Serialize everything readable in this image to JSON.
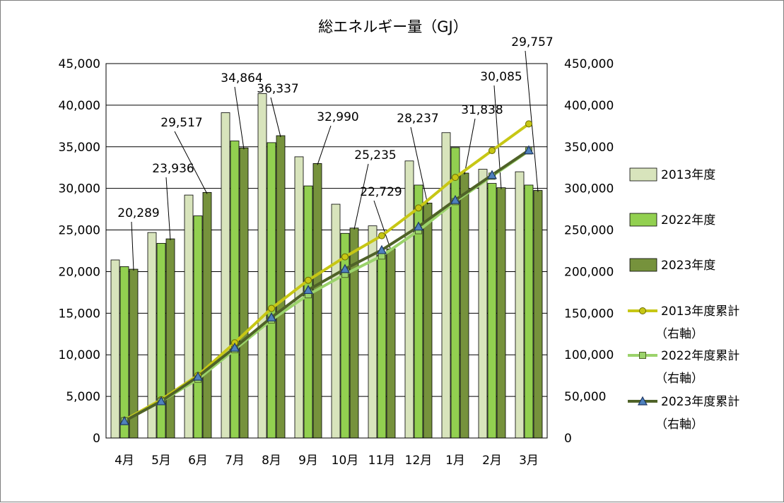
{
  "chart_data": {
    "type": "bar",
    "title": "総エネルギー量（GJ）",
    "categories": [
      "4月",
      "5月",
      "6月",
      "7月",
      "8月",
      "9月",
      "10月",
      "11月",
      "12月",
      "1月",
      "2月",
      "3月"
    ],
    "y_left": {
      "ylim": [
        0,
        45000
      ],
      "step": 5000,
      "tick_labels": [
        "0",
        "5,000",
        "10,000",
        "15,000",
        "20,000",
        "25,000",
        "30,000",
        "35,000",
        "40,000",
        "45,000"
      ]
    },
    "y_right": {
      "ylim": [
        0,
        450000
      ],
      "step": 50000,
      "tick_labels": [
        "0",
        "50,000",
        "100,000",
        "150,000",
        "200,000",
        "250,000",
        "300,000",
        "350,000",
        "400,000",
        "450,000"
      ]
    },
    "grid": true,
    "legend_position": "right",
    "bar_series": [
      {
        "name": "2013年度",
        "color": "#d8e4bc",
        "values": [
          21400,
          24700,
          29200,
          39100,
          41400,
          33800,
          28100,
          25500,
          33300,
          36700,
          32300,
          32000
        ]
      },
      {
        "name": "2022年度",
        "color": "#92d050",
        "values": [
          20600,
          23400,
          26700,
          35700,
          35500,
          30300,
          24600,
          22000,
          30400,
          34900,
          30600,
          30400
        ]
      },
      {
        "name": "2023年度",
        "color": "#76923c",
        "values": [
          20289,
          23936,
          29517,
          34864,
          36337,
          32990,
          25235,
          22729,
          28237,
          31838,
          30085,
          29757
        ],
        "data_labels": [
          "20,289",
          "23,936",
          "29,517",
          "34,864",
          "36,337",
          "32,990",
          "25,235",
          "22,729",
          "28,237",
          "31,838",
          "30,085",
          "29,757"
        ]
      }
    ],
    "line_series": [
      {
        "name": "2013年度累計",
        "axis_note": "（右軸）",
        "color": "#c7c715",
        "marker": "circle",
        "values": [
          21400,
          46100,
          75300,
          114400,
          155800,
          189600,
          217700,
          243200,
          276500,
          313200,
          345500,
          377500
        ]
      },
      {
        "name": "2022年度累計",
        "axis_note": "（右軸）",
        "color": "#9bd36b",
        "marker": "square",
        "values": [
          20600,
          44000,
          70700,
          106400,
          141900,
          172200,
          196800,
          218800,
          249200,
          284100,
          314700,
          345100
        ]
      },
      {
        "name": "2023年度累計",
        "axis_note": "（右軸）",
        "color": "#4f6228",
        "marker": "triangle",
        "values": [
          20289,
          44225,
          73742,
          108606,
          144943,
          177933,
          203168,
          225897,
          254134,
          285972,
          316057,
          345814
        ]
      }
    ]
  }
}
